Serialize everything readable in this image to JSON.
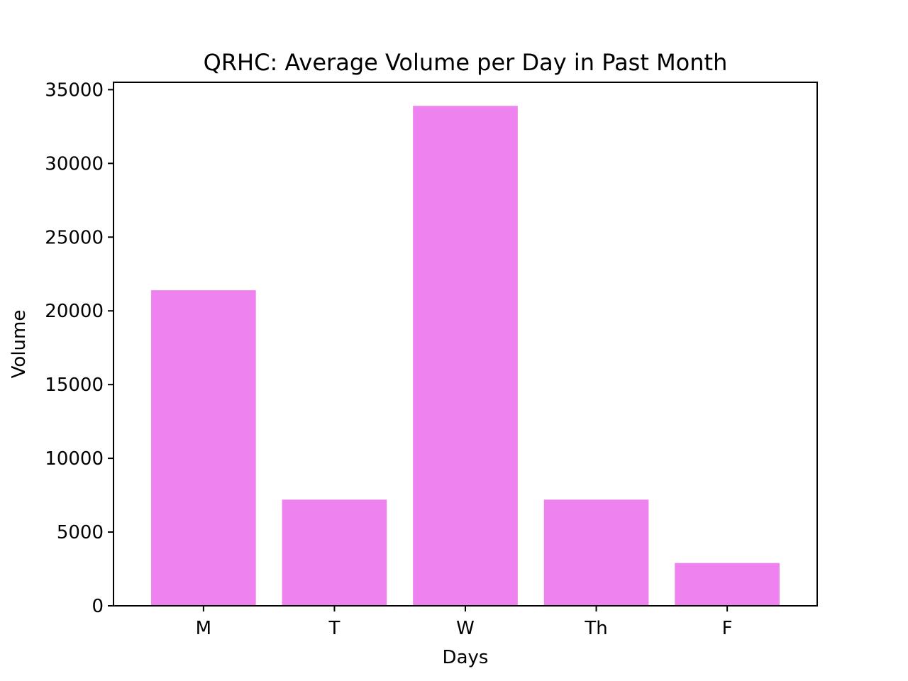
{
  "chart_data": {
    "type": "bar",
    "title": "QRHC: Average Volume per Day in Past Month",
    "xlabel": "Days",
    "ylabel": "Volume",
    "categories": [
      "M",
      "T",
      "W",
      "Th",
      "F"
    ],
    "values": [
      21400,
      7200,
      33900,
      7200,
      2900
    ],
    "ylim": [
      0,
      35500
    ],
    "yticks": [
      0,
      5000,
      10000,
      15000,
      20000,
      25000,
      30000,
      35000
    ],
    "bar_color": "#ee82ee",
    "grid": false,
    "legend": "none"
  }
}
